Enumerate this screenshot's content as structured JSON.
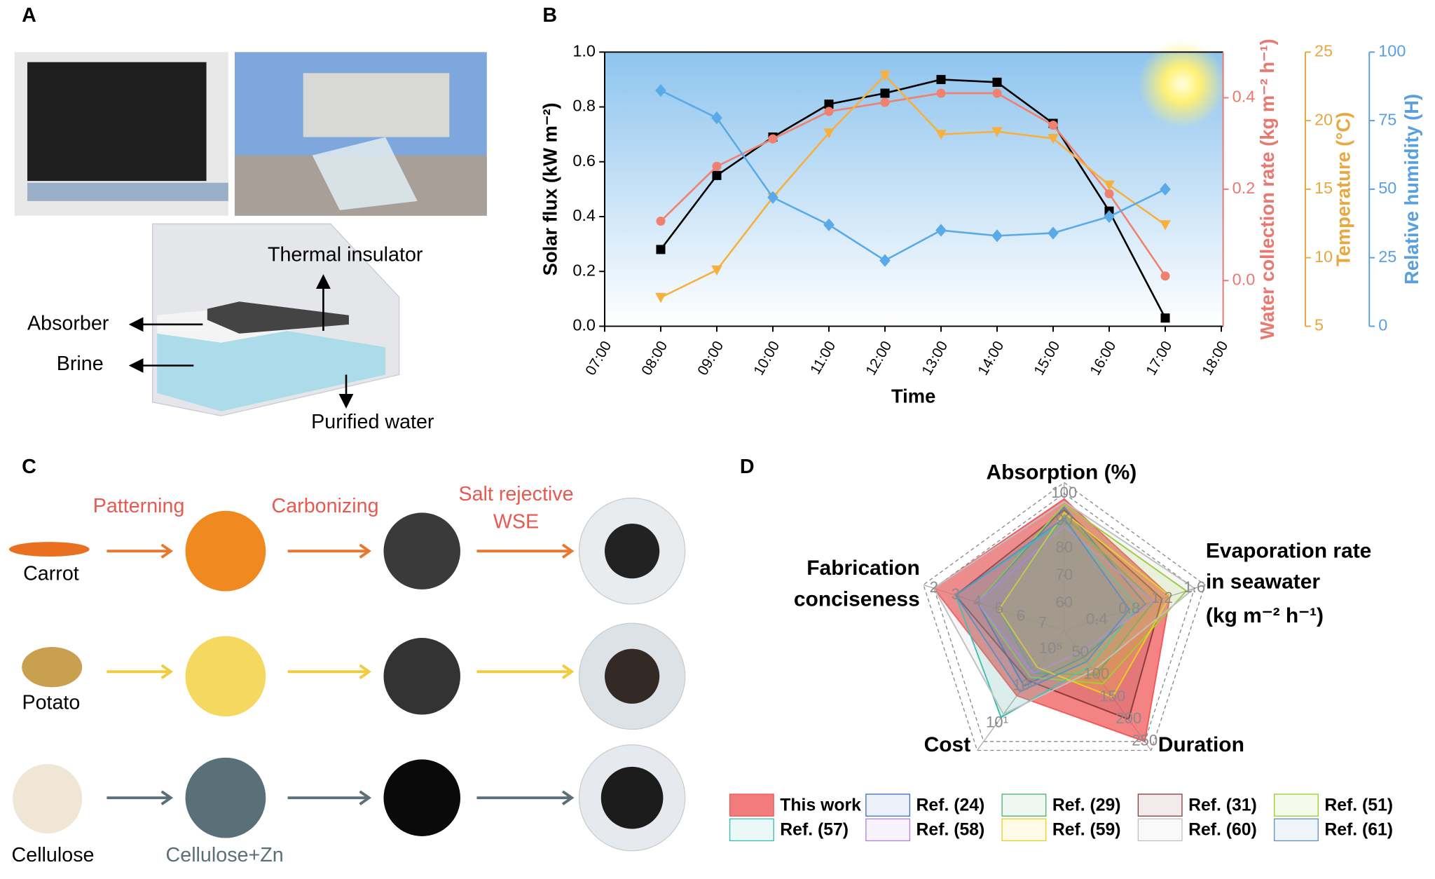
{
  "panel_labels": [
    "A",
    "B",
    "C",
    "D"
  ],
  "panel_a": {
    "annotations": [
      "Thermal insulator",
      "Absorber",
      "Brine",
      "Purified water"
    ]
  },
  "panel_c": {
    "steps": [
      "Patterning",
      "Carbonizing",
      [
        "Salt rejective",
        "WSE"
      ]
    ],
    "materials": [
      "Carrot",
      "Potato",
      "Cellulose"
    ],
    "intermediate": "Cellulose+Zn"
  },
  "chart_data": [
    {
      "type": "line",
      "x_label": "Time",
      "categories": [
        "07:00",
        "08:00",
        "09:00",
        "10:00",
        "11:00",
        "12:00",
        "13:00",
        "14:00",
        "15:00",
        "16:00",
        "17:00",
        "18:00"
      ],
      "ylim": [
        0,
        1
      ],
      "yticks": [
        {
          "value": 0,
          "label": "0.0"
        },
        0.2,
        0.4,
        0.6,
        0.8,
        {
          "value": 1,
          "label": "1.0"
        }
      ],
      "ylabel": "Solar flux (kW m⁻²)",
      "y2lim": [
        -0.1,
        0.5
      ],
      "y2ticks": [
        {
          "value": 0,
          "label": "0.0"
        },
        0.2,
        0.4
      ],
      "y2label": "Water collection rate (kg m⁻² h⁻¹)",
      "y3lim": [
        5,
        25
      ],
      "y3ticks": [
        5,
        10,
        15,
        20,
        25
      ],
      "y3label": "Temperature (°C)",
      "y4lim": [
        0,
        100
      ],
      "y4ticks": [
        0,
        25,
        50,
        75,
        100
      ],
      "y4label": "Relative humidity (H)",
      "series": [
        {
          "axis": "y",
          "color": "#000000",
          "marker": "square",
          "values": [
            null,
            0.28,
            0.55,
            0.69,
            0.81,
            0.85,
            0.9,
            0.89,
            0.74,
            0.42,
            0.03,
            null
          ]
        },
        {
          "axis": "y2",
          "color": "#f08070",
          "marker": "circle",
          "values": [
            null,
            0.13,
            0.25,
            0.31,
            0.37,
            0.39,
            0.41,
            0.41,
            0.34,
            0.19,
            0.01,
            null
          ]
        },
        {
          "axis": "y3",
          "color": "#f5b040",
          "marker": "triangle",
          "values": [
            null,
            7.1,
            9.1,
            14.4,
            19.1,
            23.3,
            19.0,
            19.2,
            18.7,
            15.3,
            12.4,
            null
          ]
        },
        {
          "axis": "y4",
          "color": "#5aaae8",
          "marker": "diamond",
          "values": [
            null,
            86,
            76,
            47,
            37,
            24,
            35,
            33,
            34,
            40,
            50,
            null
          ]
        }
      ]
    },
    {
      "type": "radar",
      "axes": [
        {
          "label": [
            "Absorption (%)"
          ],
          "range": [
            50,
            100
          ],
          "ticks": [
            60,
            70,
            80,
            90,
            100
          ]
        },
        {
          "label": [
            "Evaporation rate",
            "in seawater",
            "(kg m⁻² h⁻¹)"
          ],
          "range": [
            0,
            1.6
          ],
          "ticks": [
            0.4,
            0.8,
            1.2,
            1.6
          ]
        },
        {
          "label": [
            "Duration"
          ],
          "range": [
            0,
            250
          ],
          "ticks": [
            50,
            100,
            150,
            200,
            250
          ]
        },
        {
          "label": [
            "Cost"
          ],
          "range": [
            1000000,
            1
          ],
          "log": true,
          "ticks": [
            {
              "value": 100000,
              "label": "10⁵"
            },
            {
              "value": 1000,
              "label": "10³"
            },
            {
              "value": 10,
              "label": "10¹"
            }
          ]
        },
        {
          "label": [
            "Fabrication",
            "conciseness"
          ],
          "range": [
            8,
            2
          ],
          "ticks": [
            7,
            6,
            5,
            4,
            3,
            2
          ]
        }
      ],
      "series": [
        {
          "name": "This work",
          "color": "#f05a5a",
          "values": [
            98,
            1.3,
            250,
            300,
            2
          ]
        },
        {
          "name": "Ref. (24)",
          "color": "#3a6fc4",
          "values": [
            95,
            1.0,
            60,
            1000,
            4
          ]
        },
        {
          "name": "Ref. (29)",
          "color": "#4caf70",
          "values": [
            92,
            1.1,
            100,
            5000,
            5
          ]
        },
        {
          "name": "Ref. (31)",
          "color": "#8b3a3a",
          "values": [
            94,
            1.2,
            200,
            2000,
            3
          ]
        },
        {
          "name": "Ref. (51)",
          "color": "#9acd32",
          "values": [
            96,
            1.5,
            120,
            3000,
            4
          ]
        },
        {
          "name": "Ref. (57)",
          "color": "#30c0b0",
          "values": [
            90,
            0.9,
            80,
            20,
            3
          ]
        },
        {
          "name": "Ref. (58)",
          "color": "#b080e0",
          "values": [
            88,
            1.1,
            50,
            5000,
            4
          ]
        },
        {
          "name": "Ref. (59)",
          "color": "#e8d020",
          "values": [
            93,
            1.3,
            150,
            10000,
            5
          ]
        },
        {
          "name": "Ref. (60)",
          "color": "#c0c0c0",
          "values": [
            97,
            1.6,
            90,
            30,
            2
          ]
        },
        {
          "name": "Ref. (61)",
          "color": "#6090c0",
          "values": [
            91,
            0.8,
            70,
            500,
            3
          ]
        }
      ]
    }
  ]
}
